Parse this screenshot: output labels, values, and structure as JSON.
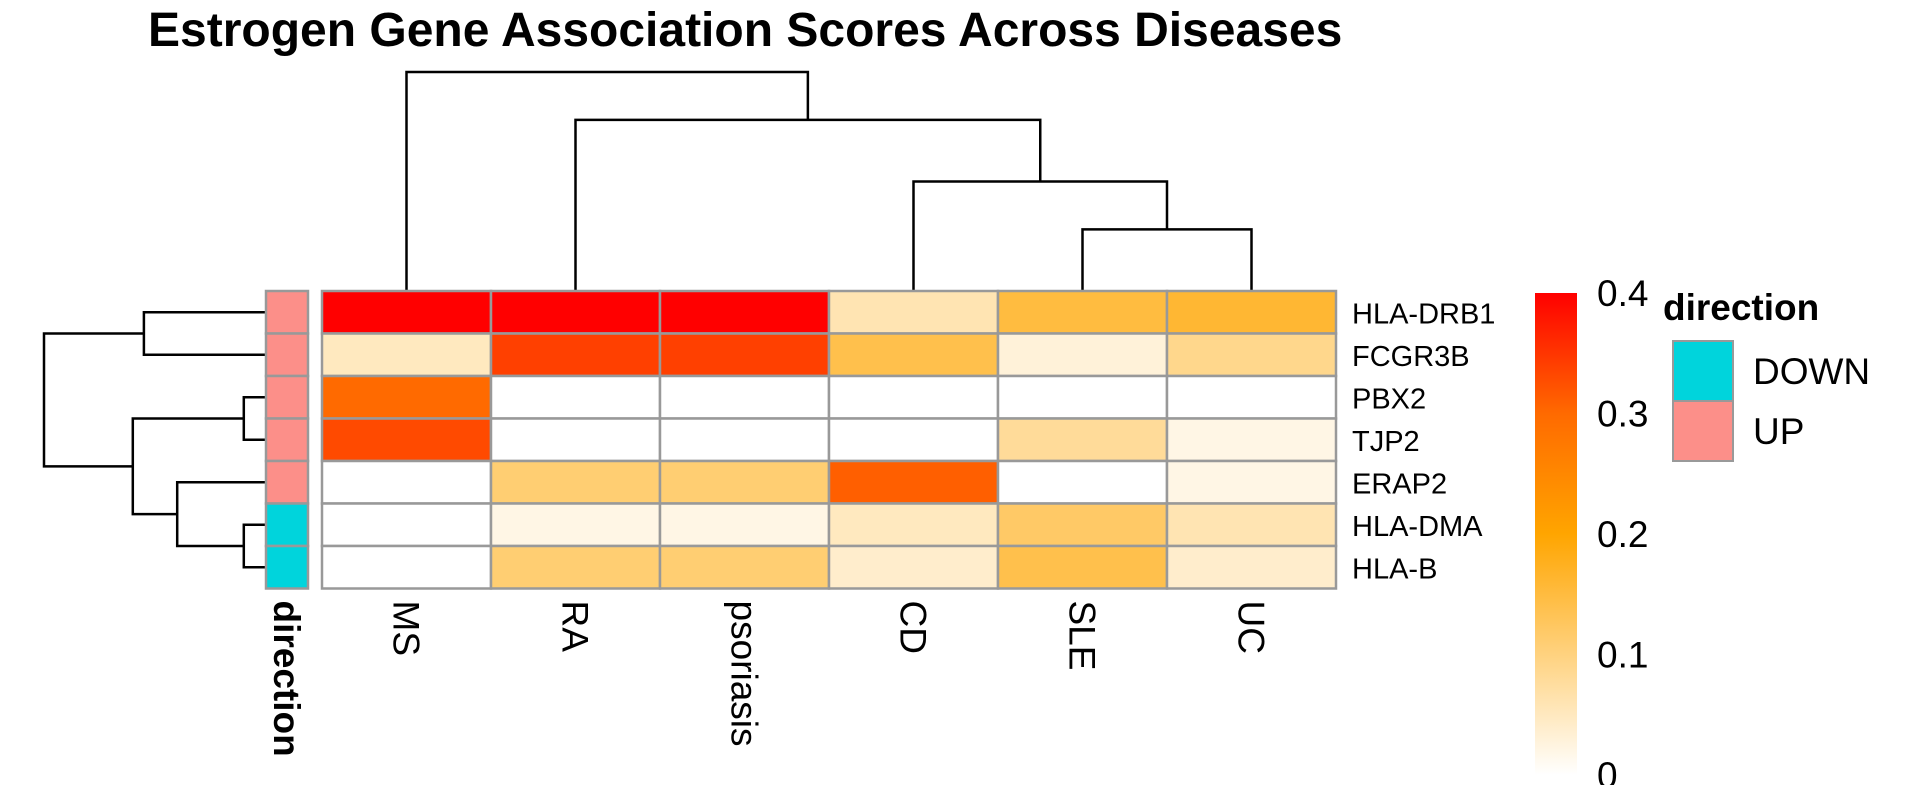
{
  "chart_data": {
    "type": "heatmap",
    "title": "Estrogen Gene Association Scores Across Diseases",
    "rows": [
      "HLA-DRB1",
      "FCGR3B",
      "PBX2",
      "TJP2",
      "ERAP2",
      "HLA-DMA",
      "HLA-B"
    ],
    "columns": [
      "MS",
      "RA",
      "psoriasis",
      "CD",
      "SLE",
      "UC"
    ],
    "values": [
      [
        0.4,
        0.4,
        0.4,
        0.06,
        0.15,
        0.16
      ],
      [
        0.05,
        0.34,
        0.34,
        0.14,
        0.03,
        0.09
      ],
      [
        0.3,
        0.0,
        0.0,
        0.0,
        0.0,
        0.0
      ],
      [
        0.33,
        0.0,
        0.0,
        0.0,
        0.08,
        0.02
      ],
      [
        0.0,
        0.11,
        0.11,
        0.31,
        0.0,
        0.02
      ],
      [
        0.0,
        0.02,
        0.02,
        0.05,
        0.12,
        0.06
      ],
      [
        0.0,
        0.11,
        0.11,
        0.04,
        0.14,
        0.04
      ]
    ],
    "row_annotation": {
      "name": "direction",
      "values": [
        "UP",
        "UP",
        "UP",
        "UP",
        "UP",
        "DOWN",
        "DOWN"
      ]
    },
    "color_scale": {
      "min": 0,
      "max": 0.4,
      "ticks": [
        "0",
        "0.1",
        "0.2",
        "0.3",
        "0.4"
      ],
      "colors": [
        "#ffffff",
        "#ffd27f",
        "#ffa500",
        "#ff6a00",
        "#ff0000"
      ]
    },
    "legend": {
      "title": "direction",
      "items": [
        {
          "label": "DOWN",
          "color": "#00d4dc"
        },
        {
          "label": "UP",
          "color": "#fc8f89"
        }
      ]
    },
    "cell_border_color": "#999999",
    "col_dendrogram": {
      "order": [
        "MS",
        "RA",
        "psoriasis",
        "CD",
        "SLE",
        "UC"
      ],
      "merges": [
        [
          4,
          5,
          0.45
        ],
        [
          3,
          6,
          0.8
        ],
        [
          1,
          7,
          1.25
        ],
        [
          0,
          8,
          1.6
        ]
      ]
    },
    "row_dendrogram": {
      "merges": [
        [
          0,
          1,
          0.55
        ],
        [
          2,
          3,
          0.1
        ],
        [
          5,
          6,
          0.1
        ],
        [
          4,
          9,
          0.4
        ],
        [
          8,
          10,
          0.6
        ],
        [
          7,
          11,
          1.0
        ]
      ]
    }
  }
}
